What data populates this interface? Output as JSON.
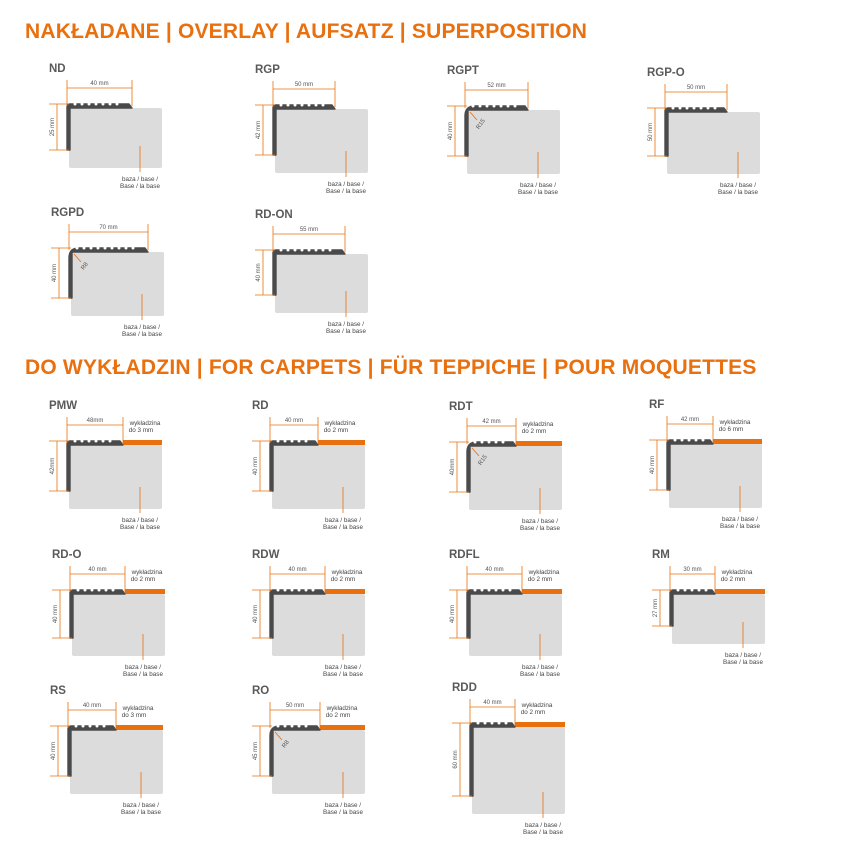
{
  "colors": {
    "accent": "#e8700f",
    "profile": "#4a4a4a",
    "base": "#dcdcdc",
    "title": "#5a5a5a"
  },
  "sections": [
    {
      "heading": "NAKŁADANE | OVERLAY | AUFSATZ | SUPERPOSITION",
      "profiles": [
        {
          "name": "ND",
          "width_label": "40 mm",
          "height_label": "25 mm"
        },
        {
          "name": "RGP",
          "width_label": "50 mm",
          "height_label": "42 mm"
        },
        {
          "name": "RGPT",
          "width_label": "52 mm",
          "height_label": "40 mm",
          "radius_label": "R15"
        },
        {
          "name": "RGP-O",
          "width_label": "50 mm",
          "height_label": "50 mm"
        },
        {
          "name": "RGPD",
          "width_label": "70 mm",
          "height_label": "40 mm",
          "radius_label": "R8"
        },
        {
          "name": "RD-ON",
          "width_label": "55 mm",
          "height_label": "40 mm"
        }
      ]
    },
    {
      "heading": "DO WYKŁADZIN | FOR CARPETS | FÜR TEPPICHE | POUR MOQUETTES",
      "profiles": [
        {
          "name": "PMW",
          "width_label": "48mm",
          "height_label": "42mm",
          "carpet_label": [
            "wykładzina",
            "do 3 mm"
          ]
        },
        {
          "name": "RD",
          "width_label": "40 mm",
          "height_label": "40 mm",
          "carpet_label": [
            "wykładzina",
            "do 2 mm"
          ]
        },
        {
          "name": "RDT",
          "width_label": "42 mm",
          "height_label": "40mm",
          "radius_label": "R15",
          "carpet_label": [
            "wykładzina",
            "do 2 mm"
          ]
        },
        {
          "name": "RF",
          "width_label": "42 mm",
          "height_label": "40 mm",
          "carpet_label": [
            "wykładzina",
            "do 6 mm"
          ]
        },
        {
          "name": "RD-O",
          "width_label": "40 mm",
          "height_label": "40 mm",
          "carpet_label": [
            "wykładzina",
            "do 2 mm"
          ]
        },
        {
          "name": "RDW",
          "width_label": "40 mm",
          "height_label": "40 mm",
          "carpet_label": [
            "wykładzina",
            "do 2 mm"
          ]
        },
        {
          "name": "RDFL",
          "width_label": "40 mm",
          "height_label": "40 mm",
          "carpet_label": [
            "wykładzina",
            "do 2 mm"
          ]
        },
        {
          "name": "RM",
          "width_label": "30 mm",
          "height_label": "27 mm",
          "carpet_label": [
            "wykładzina",
            "do 2 mm"
          ]
        },
        {
          "name": "RS",
          "width_label": "40 mm",
          "height_label": "40 mm",
          "carpet_label": [
            "wykładzina",
            "do 3 mm"
          ]
        },
        {
          "name": "RO",
          "width_label": "50 mm",
          "height_label": "45 mm",
          "radius_label": "R8",
          "carpet_label": [
            "wykładzina",
            "do 2 mm"
          ]
        },
        {
          "name": "RDD",
          "width_label": "40 mm",
          "height_label": "60 mm",
          "carpet_label": [
            "wykładzina",
            "do 2 mm"
          ]
        }
      ]
    }
  ],
  "base_label": [
    "baza / base /",
    "Base / la base"
  ]
}
